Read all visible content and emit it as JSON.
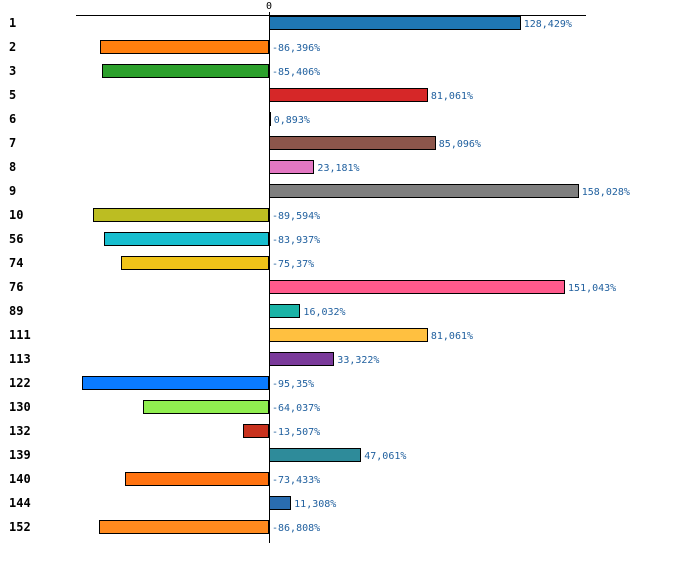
{
  "chart_data": {
    "type": "bar",
    "orientation": "horizontal",
    "title": "",
    "xlabel": "",
    "ylabel": "",
    "grid": false,
    "xlim": [
      -110,
      166
    ],
    "zero_tick_label": "0",
    "categories": [
      "1",
      "2",
      "3",
      "5",
      "6",
      "7",
      "8",
      "9",
      "10",
      "56",
      "74",
      "76",
      "89",
      "111",
      "113",
      "122",
      "130",
      "132",
      "139",
      "140",
      "144",
      "152"
    ],
    "values": [
      128.429,
      -86.396,
      -85.406,
      81.061,
      0.893,
      85.096,
      23.181,
      158.028,
      -89.594,
      -83.937,
      -75.37,
      151.043,
      16.032,
      81.061,
      33.322,
      -95.35,
      -64.037,
      -13.507,
      47.061,
      -73.433,
      11.308,
      -86.808
    ],
    "value_labels": [
      "128,429%",
      "-86,396%",
      "-85,406%",
      "81,061%",
      "0,893%",
      "85,096%",
      "23,181%",
      "158,028%",
      "-89,594%",
      "-83,937%",
      "-75,37%",
      "151,043%",
      "16,032%",
      "81,061%",
      "33,322%",
      "-95,35%",
      "-64,037%",
      "-13,507%",
      "47,061%",
      "-73,433%",
      "11,308%",
      "-86,808%"
    ],
    "colors": [
      "#1f77b4",
      "#ff7f0e",
      "#2ca02c",
      "#d62728",
      "#9467bd",
      "#8c564b",
      "#e377c2",
      "#7f7f7f",
      "#bcbd22",
      "#17becf",
      "#f0c419",
      "#ff5a8c",
      "#1ab3a6",
      "#ffc040",
      "#7a3a9a",
      "#0a7bff",
      "#90ee50",
      "#c8321e",
      "#2e8b9a",
      "#ff7310",
      "#2a6db0",
      "#ff8a1e"
    ]
  }
}
